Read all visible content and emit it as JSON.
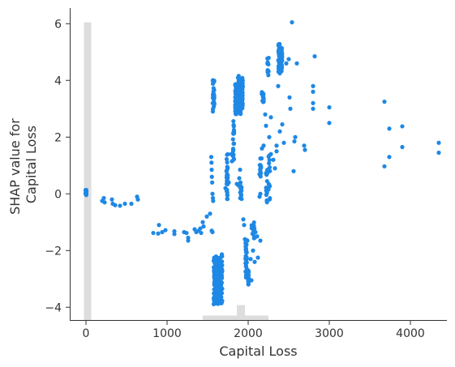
{
  "chart_data": {
    "type": "scatter",
    "xlabel": "Capital Loss",
    "ylabel_lines": [
      "SHAP value for",
      "Capital Loss"
    ],
    "xlim": [
      -200,
      4450
    ],
    "ylim": [
      -4.45,
      6.55
    ],
    "x_ticks": [
      0,
      1000,
      2000,
      3000,
      4000
    ],
    "y_ticks": [
      -4,
      -2,
      0,
      2,
      4,
      6
    ],
    "x_tick_labels": [
      "0",
      "1000",
      "2000",
      "3000",
      "4000"
    ],
    "y_tick_labels": [
      "−4",
      "−2",
      "0",
      "2",
      "4",
      "6"
    ],
    "grid": false,
    "point_color": "#1e88e5",
    "histogram_color": "#dddddd",
    "histogram": [
      {
        "x0": -25,
        "x1": 65,
        "rel_height": 1.0
      },
      {
        "x0": 1440,
        "x1": 1640,
        "rel_height": 0.015
      },
      {
        "x0": 1640,
        "x1": 1860,
        "rel_height": 0.015
      },
      {
        "x0": 1860,
        "x1": 1960,
        "rel_height": 0.05
      },
      {
        "x0": 1960,
        "x1": 2250,
        "rel_height": 0.015
      }
    ],
    "clusters": [
      {
        "x": 0,
        "x_spread": 5,
        "y_min": -0.05,
        "y_max": 0.15,
        "n": 30
      },
      {
        "x": 1573,
        "x_spread": 10,
        "y_min": 2.9,
        "y_max": 4.1,
        "n": 30
      },
      {
        "x": 1590,
        "x_spread": 15,
        "y_min": -3.9,
        "y_max": -2.2,
        "n": 80
      },
      {
        "x": 1620,
        "x_spread": 15,
        "y_min": -3.9,
        "y_max": -2.2,
        "n": 80
      },
      {
        "x": 1650,
        "x_spread": 15,
        "y_min": -3.9,
        "y_max": -2.2,
        "n": 60
      },
      {
        "x": 1672,
        "x_spread": 8,
        "y_min": -3.9,
        "y_max": -2.1,
        "n": 40
      },
      {
        "x": 1740,
        "x_spread": 8,
        "y_min": -0.2,
        "y_max": 1.4,
        "n": 25
      },
      {
        "x": 1820,
        "x_spread": 8,
        "y_min": 1.2,
        "y_max": 2.6,
        "n": 20
      },
      {
        "x": 1848,
        "x_spread": 8,
        "y_min": 2.8,
        "y_max": 3.9,
        "n": 40
      },
      {
        "x": 1880,
        "x_spread": 8,
        "y_min": 2.9,
        "y_max": 4.2,
        "n": 40
      },
      {
        "x": 1902,
        "x_spread": 5,
        "y_min": 2.8,
        "y_max": 4.0,
        "n": 40
      },
      {
        "x": 1910,
        "x_spread": 10,
        "y_min": -0.2,
        "y_max": 0.3,
        "n": 12
      },
      {
        "x": 1928,
        "x_spread": 5,
        "y_min": 3.0,
        "y_max": 4.1,
        "n": 40
      },
      {
        "x": 1975,
        "x_spread": 8,
        "y_min": -3.0,
        "y_max": -1.6,
        "n": 40
      },
      {
        "x": 2002,
        "x_spread": 6,
        "y_min": -3.2,
        "y_max": -2.7,
        "n": 20
      },
      {
        "x": 2060,
        "x_spread": 20,
        "y_min": -1.7,
        "y_max": -1.0,
        "n": 12
      },
      {
        "x": 2150,
        "x_spread": 10,
        "y_min": 0.6,
        "y_max": 1.3,
        "n": 12
      },
      {
        "x": 2180,
        "x_spread": 15,
        "y_min": 3.2,
        "y_max": 3.6,
        "n": 12
      },
      {
        "x": 2230,
        "x_spread": 10,
        "y_min": -0.3,
        "y_max": 0.9,
        "n": 15
      },
      {
        "x": 2245,
        "x_spread": 8,
        "y_min": 4.0,
        "y_max": 4.8,
        "n": 12
      },
      {
        "x": 2260,
        "x_spread": 10,
        "y_min": -0.2,
        "y_max": 1.5,
        "n": 15
      },
      {
        "x": 2380,
        "x_spread": 8,
        "y_min": 4.3,
        "y_max": 5.3,
        "n": 30
      },
      {
        "x": 2415,
        "x_spread": 6,
        "y_min": 4.3,
        "y_max": 5.2,
        "n": 25
      }
    ],
    "points": [
      [
        200,
        -0.25
      ],
      [
        220,
        -0.15
      ],
      [
        230,
        -0.3
      ],
      [
        320,
        -0.2
      ],
      [
        330,
        -0.35
      ],
      [
        360,
        -0.4
      ],
      [
        420,
        -0.42
      ],
      [
        480,
        -0.35
      ],
      [
        560,
        -0.35
      ],
      [
        630,
        -0.1
      ],
      [
        640,
        -0.2
      ],
      [
        830,
        -1.38
      ],
      [
        890,
        -1.4
      ],
      [
        900,
        -1.1
      ],
      [
        940,
        -1.35
      ],
      [
        980,
        -1.28
      ],
      [
        1090,
        -1.32
      ],
      [
        1090,
        -1.42
      ],
      [
        1210,
        -1.35
      ],
      [
        1240,
        -1.38
      ],
      [
        1260,
        -1.55
      ],
      [
        1260,
        -1.65
      ],
      [
        1340,
        -1.25
      ],
      [
        1360,
        -1.35
      ],
      [
        1390,
        -1.3
      ],
      [
        1410,
        -1.22
      ],
      [
        1420,
        -1.38
      ],
      [
        1440,
        -1.0
      ],
      [
        1450,
        -1.15
      ],
      [
        1490,
        -0.8
      ],
      [
        1530,
        -0.7
      ],
      [
        1550,
        -1.3
      ],
      [
        1560,
        -1.35
      ],
      [
        1545,
        1.3
      ],
      [
        1548,
        1.1
      ],
      [
        1550,
        0.85
      ],
      [
        1552,
        0.6
      ],
      [
        1556,
        0.4
      ],
      [
        1560,
        0.0
      ],
      [
        1565,
        -0.15
      ],
      [
        1568,
        -0.25
      ],
      [
        1720,
        0.2
      ],
      [
        1760,
        0.4
      ],
      [
        1790,
        1.4
      ],
      [
        1800,
        1.15
      ],
      [
        1860,
        0.35
      ],
      [
        1880,
        0.3
      ],
      [
        1890,
        0.55
      ],
      [
        1900,
        0.85
      ],
      [
        1905,
        0.4
      ],
      [
        1910,
        0.0
      ],
      [
        1940,
        -0.9
      ],
      [
        1950,
        -1.1
      ],
      [
        1960,
        -1.6
      ],
      [
        1970,
        -2.3
      ],
      [
        1990,
        -1.65
      ],
      [
        2030,
        -2.3
      ],
      [
        2040,
        -3.05
      ],
      [
        2060,
        -2.0
      ],
      [
        2080,
        -1.55
      ],
      [
        2080,
        -2.4
      ],
      [
        2090,
        -1.35
      ],
      [
        2110,
        -1.5
      ],
      [
        2120,
        -2.25
      ],
      [
        2150,
        -1.65
      ],
      [
        2140,
        -0.1
      ],
      [
        2150,
        0.0
      ],
      [
        2150,
        0.7
      ],
      [
        2165,
        1.25
      ],
      [
        2170,
        1.6
      ],
      [
        2190,
        1.7
      ],
      [
        2210,
        2.8
      ],
      [
        2220,
        2.4
      ],
      [
        2260,
        2.0
      ],
      [
        2280,
        2.7
      ],
      [
        2280,
        1.4
      ],
      [
        2310,
        1.2
      ],
      [
        2330,
        0.9
      ],
      [
        2350,
        1.7
      ],
      [
        2350,
        1.5
      ],
      [
        2370,
        3.8
      ],
      [
        2390,
        2.2
      ],
      [
        2390,
        4.25
      ],
      [
        2420,
        2.45
      ],
      [
        2440,
        1.8
      ],
      [
        2470,
        4.6
      ],
      [
        2500,
        4.75
      ],
      [
        2510,
        3.4
      ],
      [
        2520,
        3.0
      ],
      [
        2540,
        6.05
      ],
      [
        2560,
        0.8
      ],
      [
        2570,
        1.85
      ],
      [
        2580,
        2.0
      ],
      [
        2600,
        4.6
      ],
      [
        2690,
        1.7
      ],
      [
        2700,
        1.55
      ],
      [
        2800,
        3.8
      ],
      [
        2800,
        3.6
      ],
      [
        2800,
        3.2
      ],
      [
        2800,
        3.0
      ],
      [
        2820,
        4.85
      ],
      [
        3000,
        3.05
      ],
      [
        3000,
        2.5
      ],
      [
        3680,
        3.25
      ],
      [
        3680,
        0.97
      ],
      [
        3740,
        2.3
      ],
      [
        3740,
        1.3
      ],
      [
        3900,
        2.38
      ],
      [
        3900,
        1.65
      ],
      [
        4350,
        1.8
      ],
      [
        4350,
        1.45
      ]
    ]
  }
}
